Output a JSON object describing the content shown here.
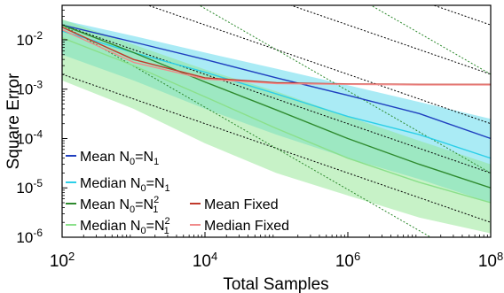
{
  "chart_data": {
    "type": "line",
    "xlabel": "Total Samples",
    "ylabel": "Square Error",
    "xscale": "log",
    "yscale": "log",
    "xlim": [
      100,
      100000000
    ],
    "ylim": [
      1e-06,
      0.05
    ],
    "xticks": [
      100,
      10000,
      1000000,
      100000000
    ],
    "xtick_labels": [
      {
        "base": "10",
        "exp": "2"
      },
      {
        "base": "10",
        "exp": "4"
      },
      {
        "base": "10",
        "exp": "6"
      },
      {
        "base": "10",
        "exp": "8"
      }
    ],
    "yticks": [
      1e-06,
      1e-05,
      0.0001,
      0.001,
      0.01
    ],
    "ytick_labels": [
      {
        "base": "10",
        "exp": "-6"
      },
      {
        "base": "10",
        "exp": "-5"
      },
      {
        "base": "10",
        "exp": "-4"
      },
      {
        "base": "10",
        "exp": "-3"
      },
      {
        "base": "10",
        "exp": "-2"
      }
    ],
    "grid": false,
    "legend_placement": "bottom-left",
    "series": [
      {
        "name": "Mean N0=N1",
        "label": {
          "pre": "Mean N",
          "s1": "0",
          "mid": "=N",
          "s2": "1",
          "sup": ""
        },
        "color": "#1f3fbf",
        "style": "solid",
        "x": [
          100,
          1000,
          10000,
          100000,
          1000000,
          10000000,
          100000000
        ],
        "y": [
          0.02,
          0.009,
          0.004,
          0.0017,
          0.00075,
          0.00032,
          0.0001
        ],
        "band": {
          "lower": [
            0.005,
            0.0015,
            0.0004,
            0.00012,
            4e-05,
            1.5e-05,
            5e-06
          ],
          "upper": [
            0.025,
            0.012,
            0.0055,
            0.0026,
            0.0012,
            0.00055,
            0.00025
          ],
          "color": "#56d8ec"
        }
      },
      {
        "name": "Median N0=N1",
        "label": {
          "pre": "Median N",
          "s1": "0",
          "mid": "=N",
          "s2": "1",
          "sup": ""
        },
        "color": "#2ccfe8",
        "style": "solid",
        "x": [
          100,
          1000,
          10000,
          100000,
          1000000,
          10000000,
          100000000
        ],
        "y": [
          0.015,
          0.0055,
          0.0022,
          0.0008,
          0.00028,
          0.00012,
          4e-05
        ]
      },
      {
        "name": "Mean N0=N1^2",
        "label": {
          "pre": "Mean N",
          "s1": "0",
          "mid": "=N",
          "s2": "1",
          "sup": "2"
        },
        "color": "#2e8a2e",
        "style": "solid",
        "x": [
          100,
          1000,
          10000,
          100000,
          1000000,
          10000000,
          100000000
        ],
        "y": [
          0.02,
          0.0055,
          0.0014,
          0.00038,
          0.0001,
          3e-05,
          1e-05
        ],
        "band": {
          "lower": [
            0.0015,
            0.0004,
            8e-05,
            2e-05,
            7e-06,
            2.5e-06,
            1.2e-06
          ],
          "upper": [
            0.026,
            0.008,
            0.0025,
            0.0009,
            0.00028,
            9e-05,
            3e-05
          ],
          "color": "#8fe68f"
        }
      },
      {
        "name": "Median N0=N1^2",
        "label": {
          "pre": "Median N",
          "s1": "0",
          "mid": "=N",
          "s2": "1",
          "sup": "2"
        },
        "color": "#8be08b",
        "style": "solid",
        "x": [
          100,
          1000,
          10000,
          100000,
          1000000,
          10000000,
          100000000
        ],
        "y": [
          0.011,
          0.003,
          0.0007,
          0.00016,
          4e-05,
          1.3e-05,
          5e-06
        ]
      },
      {
        "name": "Mean Fixed",
        "label": {
          "pre": "Mean Fixed",
          "s1": "",
          "mid": "",
          "s2": "",
          "sup": ""
        },
        "color": "#c0392b",
        "style": "solid",
        "x": [
          100,
          1000,
          10000,
          100000,
          1000000,
          10000000,
          100000000
        ],
        "y": [
          0.018,
          0.004,
          0.0017,
          0.00135,
          0.00128,
          0.00125,
          0.00125
        ]
      },
      {
        "name": "Median Fixed",
        "label": {
          "pre": "Median Fixed",
          "s1": "",
          "mid": "",
          "s2": "",
          "sup": ""
        },
        "color": "#f08a8a",
        "style": "solid",
        "x": [
          100,
          1000,
          10000,
          100000,
          1000000,
          10000000,
          100000000
        ],
        "y": [
          0.016,
          0.0035,
          0.0016,
          0.0013,
          0.00125,
          0.00122,
          0.00122
        ]
      }
    ],
    "reference_lines": [
      {
        "color": "#000000",
        "style": "dotted",
        "x": [
          100,
          100000000
        ],
        "y": [
          0.02,
          2e-05
        ]
      },
      {
        "color": "#000000",
        "style": "dotted",
        "x": [
          100,
          100000000
        ],
        "y": [
          0.002,
          2e-06
        ]
      },
      {
        "color": "#000000",
        "style": "dotted",
        "x": [
          100,
          100000000
        ],
        "y": [
          0.2,
          0.0002
        ]
      },
      {
        "color": "#000000",
        "style": "dotted",
        "x": [
          100,
          100000000
        ],
        "y": [
          2,
          0.002
        ]
      },
      {
        "color": "#000000",
        "style": "dotted",
        "x": [
          100,
          100000000
        ],
        "y": [
          20,
          0.02
        ]
      },
      {
        "color": "#2e8a2e",
        "style": "dotted",
        "x": [
          100,
          100000000
        ],
        "y": [
          0.02,
          2e-07
        ]
      },
      {
        "color": "#2e8a2e",
        "style": "dotted",
        "x": [
          100,
          100000000
        ],
        "y": [
          2,
          2e-05
        ]
      },
      {
        "color": "#2e8a2e",
        "style": "dotted",
        "x": [
          100,
          100000000
        ],
        "y": [
          200,
          0.002
        ]
      },
      {
        "color": "#2e8a2e",
        "style": "dotted",
        "x": [
          100,
          100000000
        ],
        "y": [
          20000,
          0.2
        ]
      }
    ]
  }
}
